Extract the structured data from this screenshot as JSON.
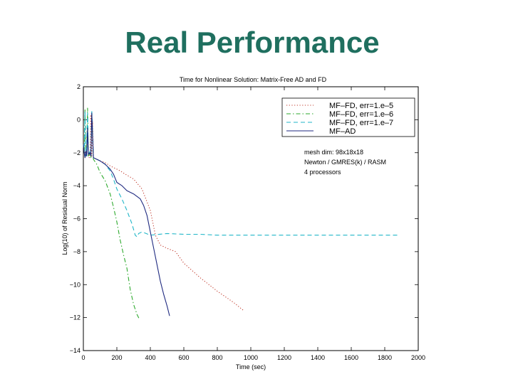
{
  "slide": {
    "title": "Real Performance"
  },
  "chart_data": {
    "type": "line",
    "title": "Time for Nonlinear Solution: Matrix-Free AD and FD",
    "xlabel": "Time (sec)",
    "ylabel": "Log(10) of Residual Norm",
    "xlim": [
      0,
      2000
    ],
    "ylim": [
      -14,
      2
    ],
    "xticks": [
      0,
      200,
      400,
      600,
      800,
      1000,
      1200,
      1400,
      1600,
      1800,
      2000
    ],
    "xtick_labels": [
      "0",
      "200",
      "400",
      "600",
      "800",
      "1000",
      "1200",
      "1400",
      "1600",
      "1800",
      "2000"
    ],
    "yticks": [
      2,
      0,
      -2,
      -4,
      -6,
      -8,
      -10,
      -12,
      -14
    ],
    "ytick_labels": [
      "2",
      "0",
      "−2",
      "−4",
      "−6",
      "−8",
      "−10",
      "−12",
      "−14"
    ],
    "grid": false,
    "legend_position": "top-right",
    "annotation_lines": [
      "mesh dim: 98x18x18",
      "Newton / GMRES(k) / RASM",
      "4 processors"
    ],
    "series": [
      {
        "name": "MF–FD, err=1.e–5",
        "color": "#c0392b",
        "dash": "dotted",
        "x": [
          0,
          5,
          10,
          15,
          20,
          25,
          30,
          35,
          40,
          45,
          50,
          55,
          60,
          80,
          100,
          130,
          160,
          180,
          200,
          220,
          250,
          300,
          350,
          400,
          430,
          460,
          500,
          550,
          600,
          700,
          800,
          900,
          960
        ],
        "y": [
          -1.5,
          -2.0,
          -2.3,
          -1.8,
          -2.2,
          -0.3,
          -2.0,
          -2.3,
          -2.0,
          0.3,
          -2.2,
          -0.1,
          -2.3,
          -2.4,
          -2.5,
          -2.6,
          -2.8,
          -2.9,
          -3.0,
          -3.1,
          -3.3,
          -3.6,
          -4.2,
          -5.5,
          -7.0,
          -7.6,
          -7.8,
          -8.0,
          -8.7,
          -9.6,
          -10.4,
          -11.1,
          -11.6
        ]
      },
      {
        "name": "MF–FD, err=1.e–6",
        "color": "#2eaa2e",
        "dash": "dashdot",
        "x": [
          0,
          5,
          10,
          15,
          20,
          25,
          30,
          40,
          45,
          50,
          60,
          80,
          100,
          130,
          160,
          180,
          200,
          220,
          240,
          260,
          280,
          300,
          320,
          335
        ],
        "y": [
          -1.5,
          -2.0,
          0.6,
          -2.2,
          -1.8,
          0.7,
          -2.2,
          -2.0,
          -2.3,
          0.3,
          -2.4,
          -2.7,
          -3.2,
          -3.7,
          -4.5,
          -5.3,
          -6.2,
          -7.3,
          -8.2,
          -9.0,
          -10.3,
          -11.2,
          -11.8,
          -12.1
        ]
      },
      {
        "name": "MF–FD, err=1.e–7",
        "color": "#21b6c8",
        "dash": "dashed",
        "x": [
          0,
          5,
          10,
          15,
          20,
          25,
          30,
          40,
          45,
          50,
          60,
          80,
          100,
          130,
          160,
          180,
          200,
          230,
          260,
          290,
          310,
          320,
          330,
          350,
          400,
          500,
          600,
          700,
          800,
          1000,
          1200,
          1400,
          1600,
          1880
        ],
        "y": [
          -1.5,
          -2.0,
          0.5,
          -2.2,
          -1.8,
          0.4,
          -2.1,
          -1.9,
          -2.2,
          0.6,
          -2.3,
          -2.4,
          -2.5,
          -2.7,
          -3.1,
          -3.6,
          -4.2,
          -4.8,
          -5.5,
          -6.3,
          -7.0,
          -7.1,
          -6.9,
          -6.8,
          -7.0,
          -6.9,
          -6.95,
          -6.95,
          -7.0,
          -7.0,
          -7.0,
          -7.0,
          -7.0,
          -7.0
        ]
      },
      {
        "name": "MF–AD",
        "color": "#1f2a80",
        "dash": "solid",
        "x": [
          0,
          5,
          10,
          15,
          20,
          25,
          30,
          40,
          45,
          50,
          60,
          80,
          100,
          130,
          160,
          180,
          200,
          230,
          260,
          300,
          340,
          360,
          380,
          400,
          420,
          440,
          460,
          480,
          500,
          515
        ],
        "y": [
          -1.5,
          -2.0,
          -2.3,
          -1.9,
          -2.2,
          -0.5,
          -2.1,
          -2.0,
          -2.2,
          0.4,
          -2.3,
          -2.4,
          -2.5,
          -2.7,
          -3.0,
          -3.3,
          -3.8,
          -4.0,
          -4.3,
          -4.5,
          -4.8,
          -5.2,
          -5.8,
          -6.8,
          -7.8,
          -8.8,
          -9.8,
          -10.6,
          -11.3,
          -11.9
        ]
      }
    ]
  }
}
